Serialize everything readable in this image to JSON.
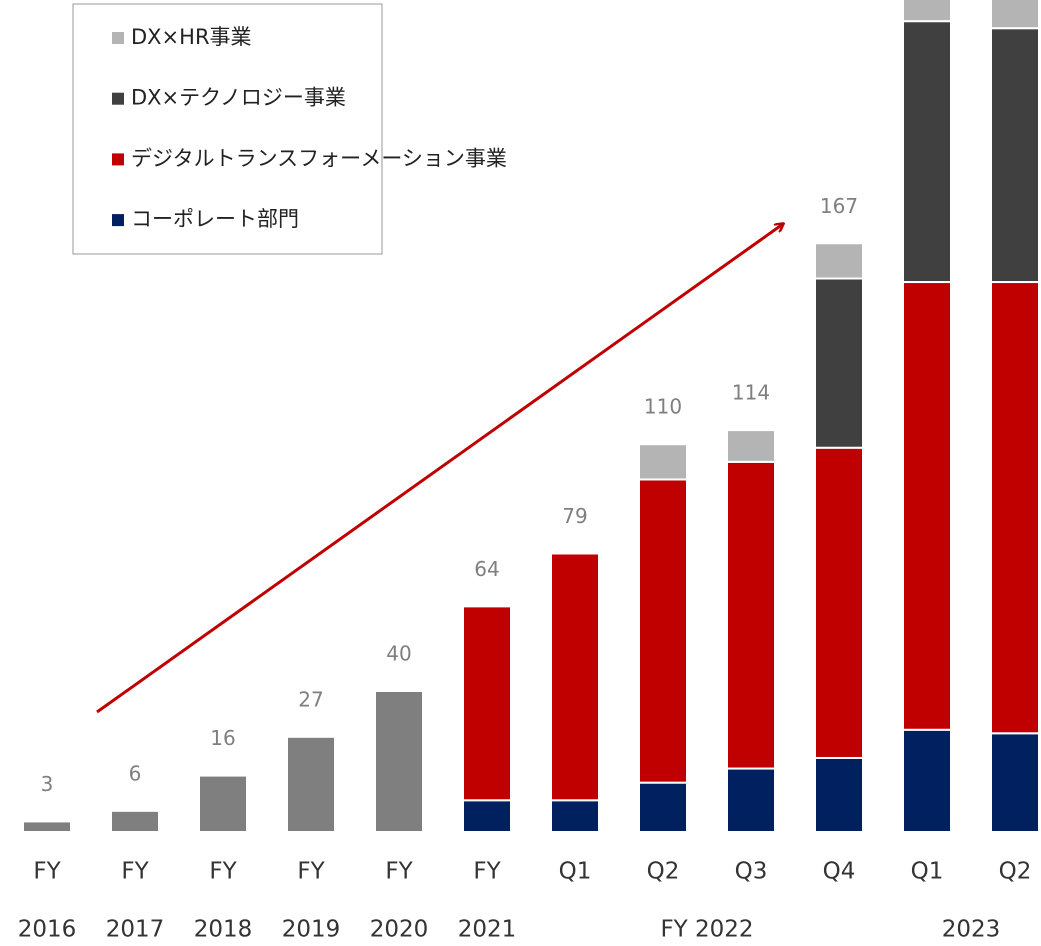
{
  "chart_data": {
    "type": "stacked_bar",
    "categories": [
      "FY",
      "FY",
      "FY",
      "FY",
      "FY",
      "FY",
      "Q1",
      "Q2",
      "Q3",
      "Q4",
      "Q1",
      "Q2"
    ],
    "category_groups": [
      {
        "label": "2016",
        "count": 1
      },
      {
        "label": "2017",
        "count": 1
      },
      {
        "label": "2018",
        "count": 1
      },
      {
        "label": "2019",
        "count": 1
      },
      {
        "label": "2020",
        "count": 1
      },
      {
        "label": "2021",
        "count": 1
      },
      {
        "label": "FY 2022",
        "count": 4
      },
      {
        "label": "2023",
        "count": 2
      }
    ],
    "series": [
      {
        "color": "#7f7f7f",
        "values": [
          3,
          6,
          16,
          27,
          40,
          null,
          null,
          null,
          null,
          null,
          null,
          null
        ]
      },
      {
        "name": "コーポレート部門",
        "color": "#002060",
        "values": [
          null,
          null,
          null,
          null,
          null,
          9,
          9,
          14,
          18,
          21,
          29,
          28
        ]
      },
      {
        "name": "デジタルトランスフォーメーション事業",
        "color": "#c00000",
        "values": [
          null,
          null,
          null,
          null,
          null,
          55,
          70,
          86,
          87,
          88,
          127,
          128
        ]
      },
      {
        "name": "DX×テクノロジー事業",
        "color": "#404040",
        "values": [
          null,
          null,
          null,
          null,
          null,
          null,
          null,
          null,
          null,
          48,
          74,
          72
        ]
      },
      {
        "name": "DX×HR事業",
        "color": "#b4b4b4",
        "values": [
          null,
          null,
          null,
          null,
          null,
          null,
          null,
          10,
          9,
          10,
          10,
          10
        ]
      }
    ],
    "totals": [
      3,
      6,
      16,
      27,
      40,
      64,
      79,
      110,
      114,
      167,
      null,
      null
    ],
    "ylim": [
      0,
      236
    ]
  }
}
